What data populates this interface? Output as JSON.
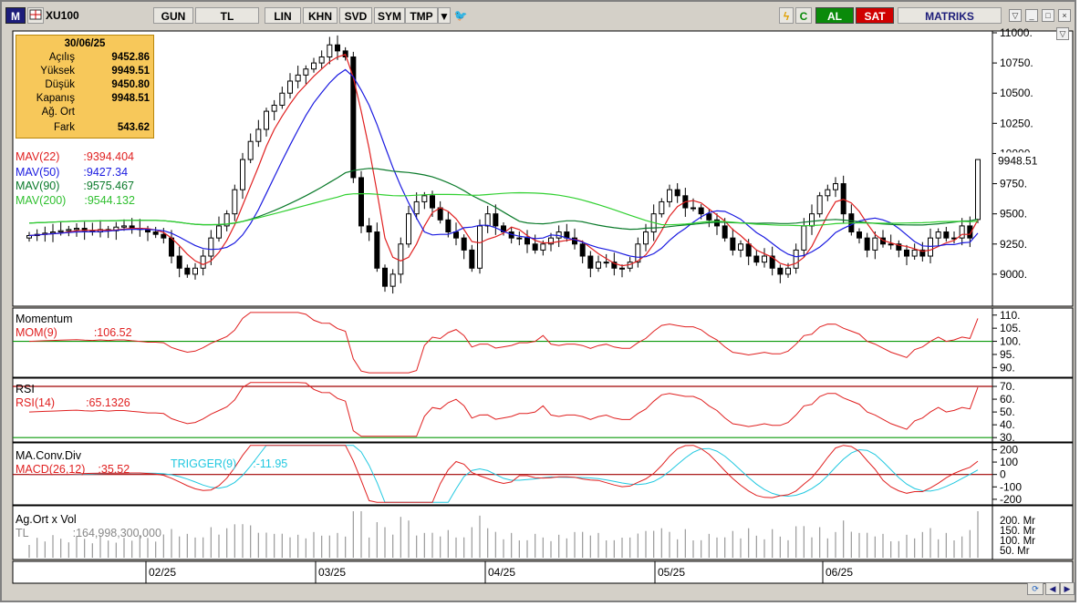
{
  "toolbar": {
    "logo": "M",
    "symbol": "XU100",
    "buttons": [
      "GUN",
      "TL",
      "LIN",
      "KHN",
      "SVD",
      "SYM",
      "TMP"
    ],
    "al_label": "AL",
    "sat_label": "SAT",
    "brand": "MATRIKS"
  },
  "infobox": {
    "date": "30/06/25",
    "rows": [
      {
        "label": "Açılış",
        "value": "9452.86"
      },
      {
        "label": "Yüksek",
        "value": "9949.51"
      },
      {
        "label": "Düşük",
        "value": "9450.80"
      },
      {
        "label": "Kapanış",
        "value": "9948.51"
      },
      {
        "label": "Ağ. Ort",
        "value": ""
      },
      {
        "label": "Fark",
        "value": "543.62"
      }
    ]
  },
  "legends": {
    "mav22": {
      "label": "MAV(22)",
      "value": ":9394.404",
      "color": "#e02020"
    },
    "mav50": {
      "label": "MAV(50)",
      "value": ":9427.34",
      "color": "#1a1ae0"
    },
    "mav90": {
      "label": "MAV(90)",
      "value": ":9575.467",
      "color": "#0a7a2a"
    },
    "mav200": {
      "label": "MAV(200)",
      "value": ":9544.132",
      "color": "#30d030"
    },
    "momentum_title": "Momentum",
    "mom": {
      "label": "MOM(9)",
      "value": ":106.52",
      "color": "#e02020"
    },
    "rsi_title": "RSI",
    "rsi": {
      "label": "RSI(14)",
      "value": ":65.1326",
      "color": "#e02020"
    },
    "macd_title": "MA.Conv.Div",
    "macd": {
      "label": "MACD(26,12)",
      "value": ":35.52",
      "color": "#e02020"
    },
    "trigger": {
      "label": "TRIGGER(9)",
      "value": ":-11.95",
      "color": "#20c8e0"
    },
    "vol_title": "Ag.Ort x Vol",
    "vol": {
      "label": "TL",
      "value": ":164,998,300,000",
      "color": "#888888"
    }
  },
  "chart_data": [
    {
      "type": "candlestick",
      "title": "XU100",
      "x_ticks": [
        "02/25",
        "03/25",
        "04/25",
        "05/25",
        "06/25"
      ],
      "ylim": [
        8750,
        11000
      ],
      "y_ticks": [
        9000,
        9250,
        9500,
        9750,
        10000,
        10250,
        10500,
        10750,
        11000
      ],
      "last_close_label": "9948.51",
      "close_approx": [
        9320,
        9330,
        9340,
        9350,
        9360,
        9370,
        9380,
        9360,
        9350,
        9370,
        9360,
        9390,
        9400,
        9380,
        9370,
        9350,
        9330,
        9300,
        9150,
        9050,
        9000,
        9050,
        9150,
        9300,
        9400,
        9500,
        9700,
        9950,
        10100,
        10200,
        10350,
        10400,
        10500,
        10600,
        10650,
        10700,
        10750,
        10800,
        10900,
        10850,
        10800,
        9800,
        9400,
        9350,
        9050,
        8900,
        9000,
        9250,
        9500,
        9600,
        9650,
        9550,
        9450,
        9350,
        9300,
        9200,
        9050,
        9400,
        9500,
        9400,
        9350,
        9300,
        9300,
        9250,
        9200,
        9250,
        9300,
        9350,
        9300,
        9250,
        9150,
        9050,
        9100,
        9100,
        9050,
        9050,
        9100,
        9250,
        9350,
        9500,
        9600,
        9700,
        9650,
        9550,
        9550,
        9500,
        9450,
        9400,
        9300,
        9200,
        9250,
        9150,
        9100,
        9150,
        9050,
        9000,
        9050,
        9200,
        9400,
        9500,
        9650,
        9700,
        9750,
        9500,
        9350,
        9300,
        9200,
        9300,
        9250,
        9250,
        9200,
        9150,
        9200,
        9150,
        9300,
        9350,
        9300,
        9300,
        9400,
        9300,
        9950
      ],
      "series": [
        {
          "name": "MAV(22)",
          "last": 9394.404
        },
        {
          "name": "MAV(50)",
          "last": 9427.34
        },
        {
          "name": "MAV(90)",
          "last": 9575.467
        },
        {
          "name": "MAV(200)",
          "last": 9544.132
        }
      ]
    },
    {
      "type": "line",
      "title": "Momentum",
      "series": [
        {
          "name": "MOM(9)"
        }
      ],
      "y_ticks": [
        90,
        95,
        100,
        105,
        110
      ],
      "ylim": [
        87,
        112
      ],
      "reference_line": 100,
      "last_value": 106.52
    },
    {
      "type": "line",
      "title": "RSI",
      "series": [
        {
          "name": "RSI(14)"
        }
      ],
      "y_ticks": [
        30,
        40,
        50,
        60,
        70
      ],
      "ylim": [
        28,
        75
      ],
      "reference_lines": [
        30,
        70
      ],
      "last_value": 65.1326
    },
    {
      "type": "line",
      "title": "MA.Conv.Div",
      "series": [
        {
          "name": "MACD(26,12)"
        },
        {
          "name": "TRIGGER(9)"
        }
      ],
      "y_ticks": [
        -200,
        -100,
        0,
        100,
        200
      ],
      "ylim": [
        -230,
        240
      ],
      "reference_line": 0,
      "last_macd": 35.52,
      "last_trigger": -11.95
    },
    {
      "type": "bar",
      "title": "Ag.Ort x Vol",
      "y_ticks": [
        "50. Mr",
        "100. Mr",
        "150. Mr",
        "200. Mr"
      ],
      "last_value": "164,998,300,000"
    }
  ]
}
